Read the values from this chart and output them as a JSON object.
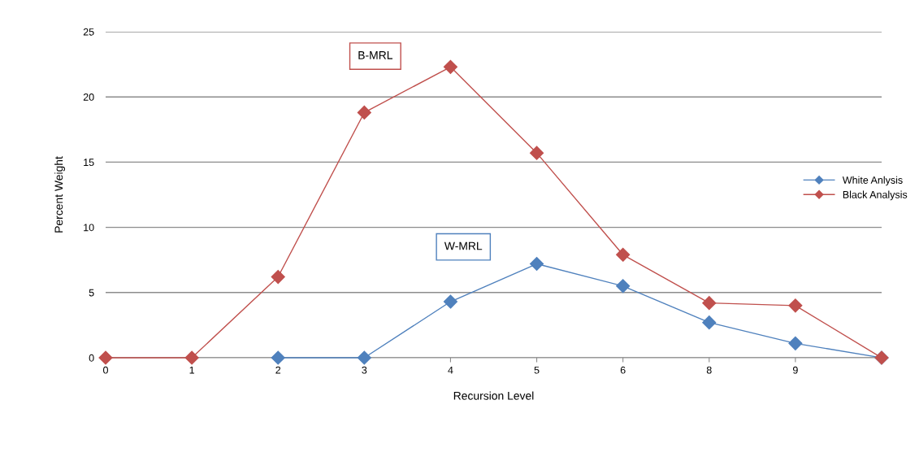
{
  "chart_data": {
    "type": "line",
    "xlabel": "Recursion Level",
    "ylabel": "Percent Weight",
    "categories": [
      "0",
      "1",
      "2",
      "3",
      "4",
      "5",
      "6",
      "8",
      "9",
      null
    ],
    "series": [
      {
        "name": "White Anlysis",
        "color": "#4f81bd",
        "values": [
          null,
          null,
          0,
          0,
          4.3,
          7.2,
          5.5,
          2.7,
          1.1,
          0
        ]
      },
      {
        "name": "Black Analysis",
        "color": "#c0504d",
        "values": [
          0,
          0,
          6.2,
          18.8,
          22.3,
          15.7,
          7.9,
          4.2,
          4.0,
          0
        ]
      }
    ],
    "annotations": [
      "B-MRL",
      "W-MRL"
    ],
    "ylim": [
      0,
      25
    ],
    "yticks": [
      0,
      5,
      10,
      15,
      20,
      25
    ],
    "grid": "y",
    "legend": "right",
    "marker": "diamond",
    "line_style": "solid"
  }
}
